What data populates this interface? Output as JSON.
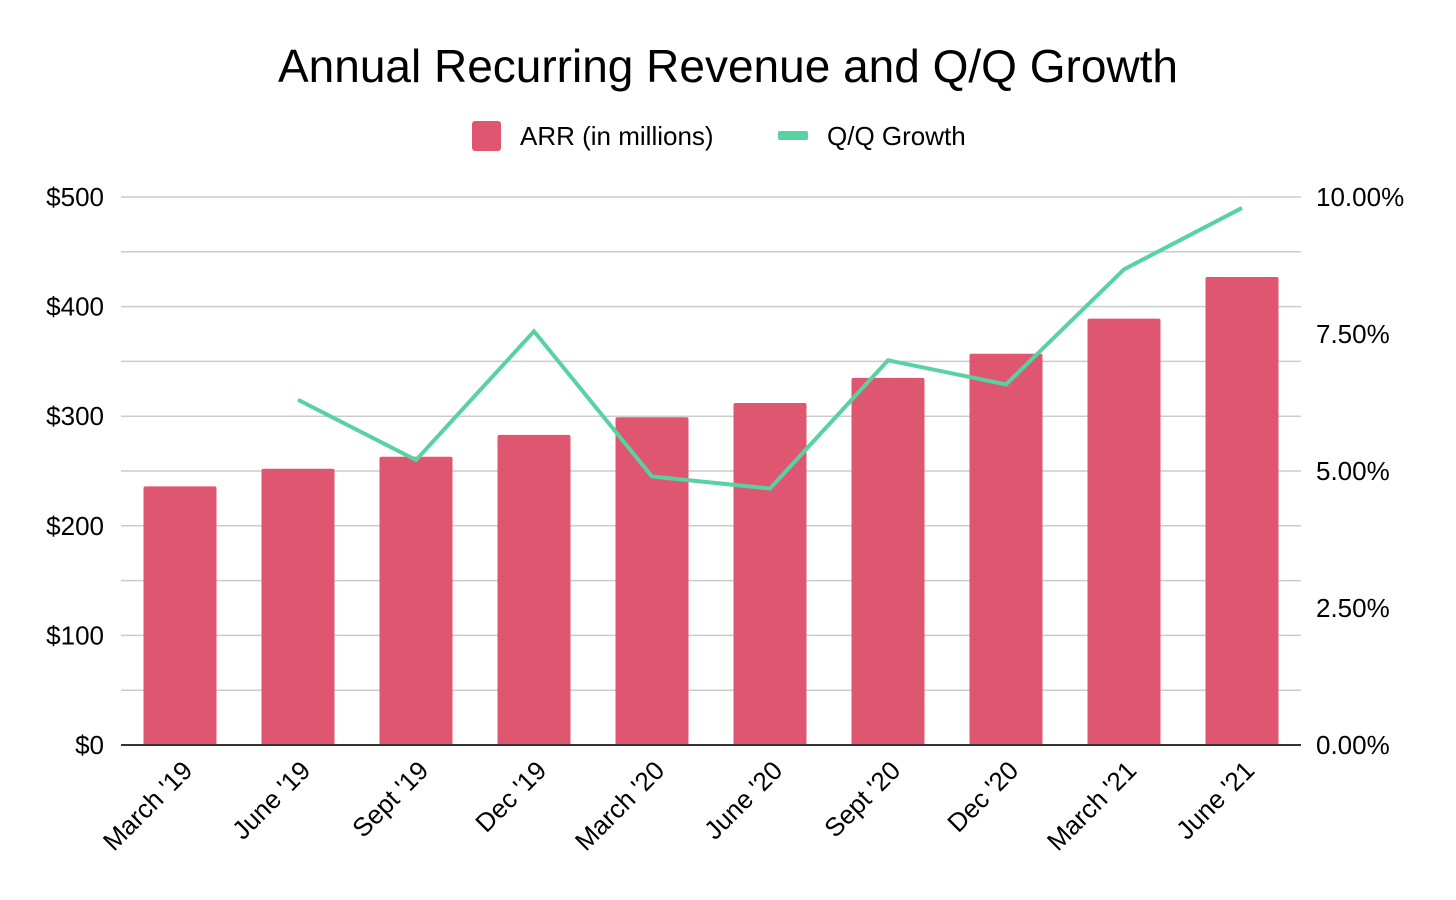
{
  "chart_data": {
    "type": "bar",
    "title": "Annual Recurring Revenue and Q/Q Growth",
    "xlabel": "",
    "ylabel": "",
    "categories": [
      "March '19",
      "June '19",
      "Sept '19",
      "Dec '19",
      "March '20",
      "June '20",
      "Sept '20",
      "Dec '20",
      "March '21",
      "June '21"
    ],
    "series": [
      {
        "name": "ARR (in millions)",
        "type": "bar",
        "axis": "left",
        "color": "#df5671",
        "values": [
          236,
          252,
          263,
          283,
          299,
          312,
          335,
          357,
          389,
          427
        ]
      },
      {
        "name": "Q/Q Growth",
        "type": "line",
        "axis": "right",
        "color": "#57d2a0",
        "values": [
          null,
          6.3,
          5.2,
          7.55,
          4.9,
          4.68,
          7.02,
          6.58,
          8.68,
          9.8
        ]
      }
    ],
    "ylim": [
      0,
      500
    ],
    "y_ticks": [
      "$0",
      "$100",
      "$200",
      "$300",
      "$400",
      "$500"
    ],
    "y2lim": [
      0,
      10
    ],
    "y2_ticks": [
      "0.00%",
      "2.50%",
      "5.00%",
      "7.50%",
      "10.00%"
    ],
    "grid": true,
    "legend_position": "top-center"
  }
}
